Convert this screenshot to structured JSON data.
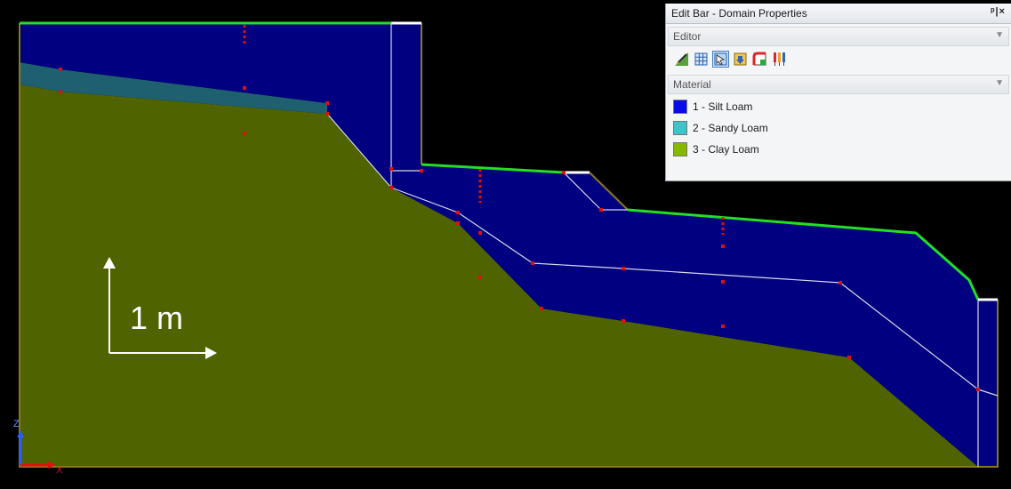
{
  "panel": {
    "title": "Edit Bar - Domain Properties",
    "pin_close": "ᵖ|×",
    "editor_label": "Editor",
    "material_label": "Material",
    "tools": [
      {
        "name": "pencil-edit-icon"
      },
      {
        "name": "grid-mesh-icon"
      },
      {
        "name": "domain-select-icon",
        "active": true
      },
      {
        "name": "import-arrow-icon"
      },
      {
        "name": "boundary-color-icon"
      },
      {
        "name": "observation-points-icon"
      }
    ],
    "materials": [
      {
        "label": "1 - Silt Loam",
        "color": "#0a0ae6"
      },
      {
        "label": "2 - Sandy Loam",
        "color": "#3cc4c8"
      },
      {
        "label": "3 - Clay Loam",
        "color": "#86b800"
      }
    ]
  },
  "scale": {
    "label": "1 m"
  },
  "axis": {
    "z_label": "Z",
    "x_label": "X"
  },
  "colors": {
    "silt_loam_fill": "#000080",
    "sandy_loam_fill": "#1e6070",
    "clay_loam_fill": "#4f6400",
    "boundary_green": "#22e022",
    "outline_olive": "#8a7a1a",
    "node_red": "#e01010"
  }
}
